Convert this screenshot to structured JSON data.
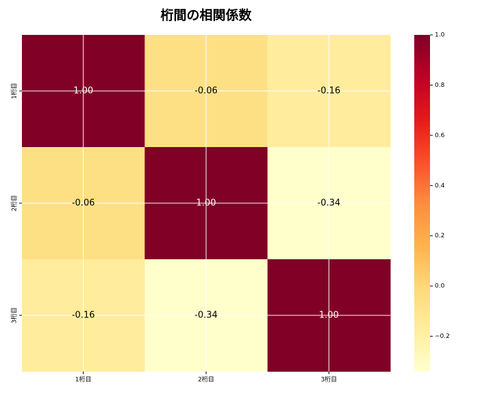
{
  "chart_data": {
    "type": "heatmap",
    "title": "桁間の相関係数",
    "x_categories": [
      "1桁目",
      "2桁目",
      "3桁目"
    ],
    "y_categories": [
      "1桁目",
      "2桁目",
      "3桁目"
    ],
    "values": [
      [
        1.0,
        -0.06,
        -0.16
      ],
      [
        -0.06,
        1.0,
        -0.34
      ],
      [
        -0.16,
        -0.34,
        1.0
      ]
    ],
    "value_labels": [
      [
        "1.00",
        "-0.06",
        "-0.16"
      ],
      [
        "-0.06",
        "1.00",
        "-0.34"
      ],
      [
        "-0.16",
        "-0.34",
        "1.00"
      ]
    ],
    "clim": [
      -0.34,
      1.0
    ],
    "cticks": [
      {
        "value": -0.2,
        "label": "−0.2"
      },
      {
        "value": 0,
        "label": "0.0"
      },
      {
        "value": 0.2,
        "label": "0.2"
      },
      {
        "value": 0.4,
        "label": "0.4"
      },
      {
        "value": 0.6,
        "label": "0.6"
      },
      {
        "value": 0.8,
        "label": "0.8"
      },
      {
        "value": 1.0,
        "label": "1.0"
      }
    ],
    "colormap": [
      "#ffffcc",
      "#ffeda0",
      "#fed976",
      "#feb24c",
      "#fd8d3c",
      "#fc4e2a",
      "#e31a1c",
      "#bd0026",
      "#800026"
    ],
    "grid": true
  }
}
